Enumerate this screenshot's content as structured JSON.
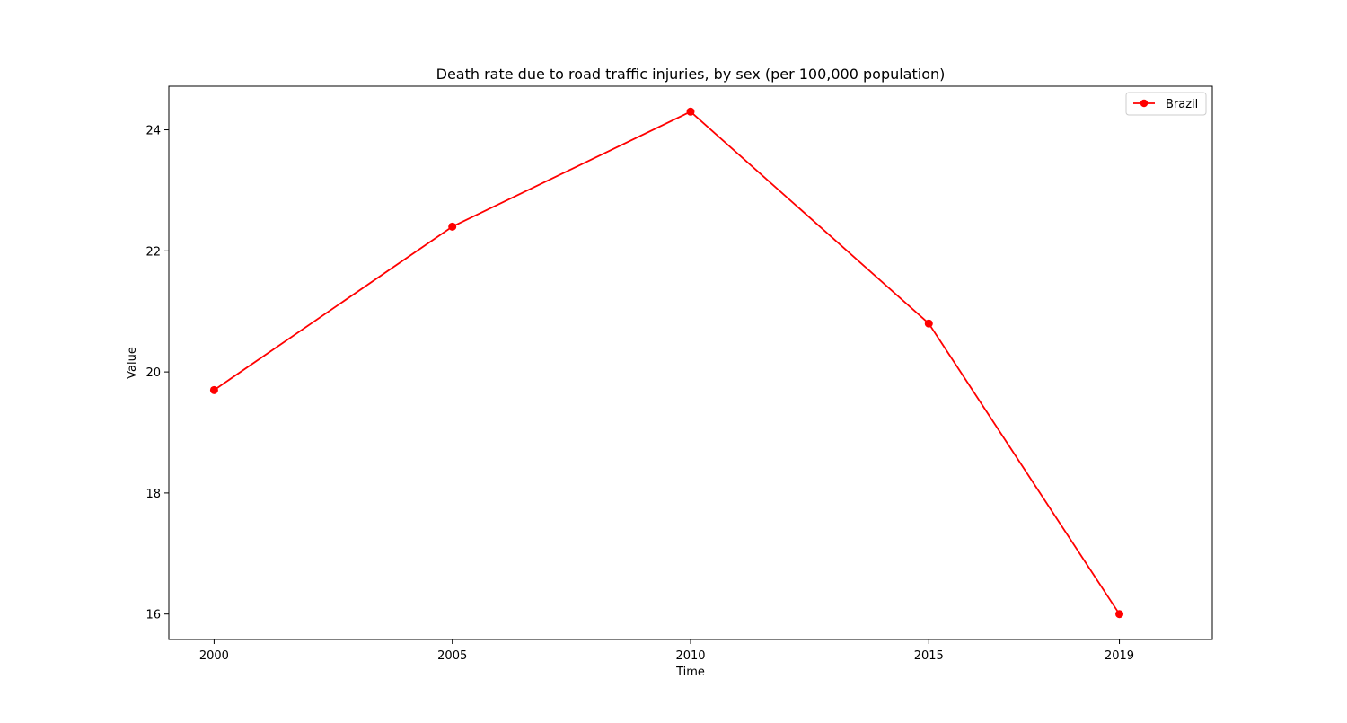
{
  "chart_data": {
    "type": "line",
    "title": "Death rate due to road traffic injuries, by sex (per 100,000 population)",
    "xlabel": "Time",
    "ylabel": "Value",
    "x": [
      2000,
      2005,
      2010,
      2015,
      2019
    ],
    "x_tick_labels": [
      "2000",
      "2005",
      "2010",
      "2015",
      "2019"
    ],
    "y_ticks": [
      16,
      18,
      20,
      22,
      24
    ],
    "y_tick_labels": [
      "16",
      "18",
      "20",
      "22",
      "24"
    ],
    "xlim": [
      1999.05,
      2020.95
    ],
    "ylim": [
      15.58,
      24.72
    ],
    "grid": false,
    "legend_position": "top-right",
    "series": [
      {
        "name": "Brazil",
        "color": "#ff0000",
        "marker": "circle",
        "values": [
          19.7,
          22.4,
          24.3,
          20.8,
          16.0
        ]
      }
    ]
  }
}
